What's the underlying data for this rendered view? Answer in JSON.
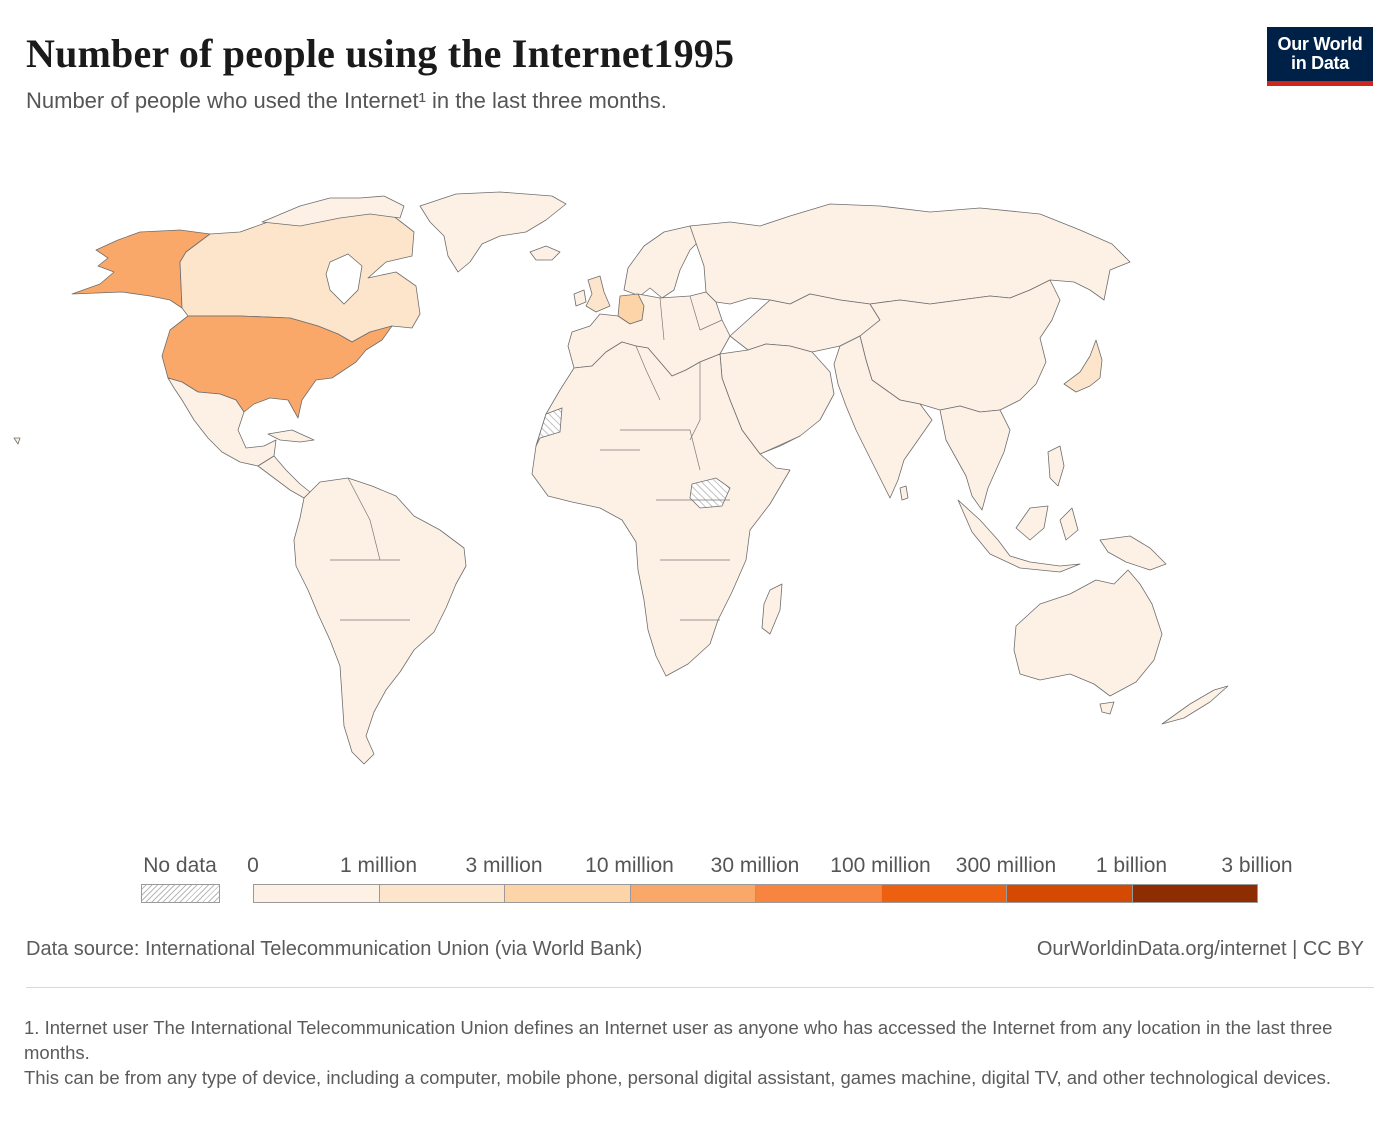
{
  "header": {
    "title": "Number of people using the Internet1995",
    "subtitle": "Number of people who used the Internet¹ in the last three months.",
    "logo_line1": "Our World",
    "logo_line2": "in Data",
    "logo_colors": {
      "background": "#002147",
      "accent": "#ce261e"
    }
  },
  "map_data": {
    "year": 1995,
    "metric": "Number of people who used the Internet in the last three months",
    "regions": [
      {
        "name": "United States",
        "bin": "10 million – 30 million",
        "color": "#f9a869"
      },
      {
        "name": "Alaska",
        "bin": "10 million – 30 million",
        "color": "#f9a869"
      },
      {
        "name": "Canada",
        "bin": "1 million – 3 million",
        "color": "#fde5cc"
      },
      {
        "name": "United Kingdom",
        "bin": "1 million – 3 million",
        "color": "#fde5cc"
      },
      {
        "name": "Germany",
        "bin": "3 million – 10 million",
        "color": "#fdd4a8"
      },
      {
        "name": "Japan",
        "bin": "1 million – 3 million",
        "color": "#fde5cc"
      },
      {
        "name": "Western Sahara",
        "bin": "No data",
        "color": "hatched"
      },
      {
        "name": "South Sudan",
        "bin": "No data",
        "color": "hatched"
      },
      {
        "name": "Rest of world",
        "bin": "0 – 1 million",
        "color": "#fdf1e5"
      }
    ]
  },
  "legend": {
    "no_data_label": "No data",
    "ticks": [
      "0",
      "1 million",
      "3 million",
      "10 million",
      "30 million",
      "100 million",
      "300 million",
      "1 billion",
      "3 billion"
    ],
    "bins": [
      {
        "from": "0",
        "to": "1 million",
        "color": "#fdf1e5"
      },
      {
        "from": "1 million",
        "to": "3 million",
        "color": "#fde5cc"
      },
      {
        "from": "3 million",
        "to": "10 million",
        "color": "#fdd4a8"
      },
      {
        "from": "10 million",
        "to": "30 million",
        "color": "#f9a869"
      },
      {
        "from": "30 million",
        "to": "100 million",
        "color": "#f8853f"
      },
      {
        "from": "100 million",
        "to": "300 million",
        "color": "#ec6010"
      },
      {
        "from": "300 million",
        "to": "1 billion",
        "color": "#d44a03"
      },
      {
        "from": "1 billion",
        "to": "3 billion",
        "color": "#8e2c02"
      }
    ]
  },
  "footer": {
    "source": "Data source: International Telecommunication Union (via World Bank)",
    "url": "OurWorldinData.org/internet | CC BY",
    "footnote_1": "1. Internet user The International Telecommunication Union defines an Internet user as anyone who has accessed the Internet from any location in the last three months.",
    "footnote_2": "This can be from any type of device, including a computer, mobile phone, personal digital assistant, games machine, digital TV, and other technological devices."
  }
}
